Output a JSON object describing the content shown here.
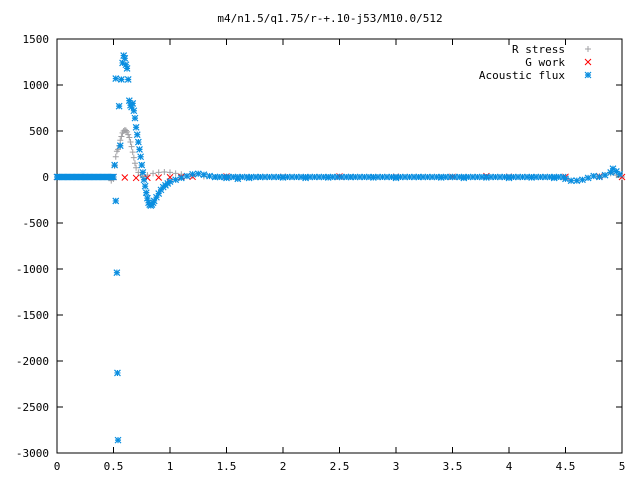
{
  "chart_data": {
    "type": "scatter",
    "title": "m4/n1.5/q1.75/r-+.10-j53/M10.0/512",
    "xlabel": "",
    "ylabel": "",
    "xlim": [
      0,
      5
    ],
    "ylim": [
      -3000,
      1500
    ],
    "xticks": [
      0,
      0.5,
      1,
      1.5,
      2,
      2.5,
      3,
      3.5,
      4,
      4.5,
      5
    ],
    "xtick_labels": [
      "0",
      "0.5",
      "1",
      "1.5",
      "2",
      "2.5",
      "3",
      "3.5",
      "4",
      "4.5",
      "5"
    ],
    "yticks": [
      -3000,
      -2500,
      -2000,
      -1500,
      -1000,
      -500,
      0,
      500,
      1000,
      1500
    ],
    "ytick_labels": [
      "-3000",
      "-2500",
      "-2000",
      "-1500",
      "-1000",
      "-500",
      "0",
      "500",
      "1000",
      "1500"
    ],
    "grid": false,
    "legend_position": "top-right",
    "series": [
      {
        "name": "R stress",
        "color": "#a0a0a4",
        "marker": "plus",
        "points": [
          [
            0.0,
            0
          ],
          [
            0.1,
            0
          ],
          [
            0.2,
            0
          ],
          [
            0.3,
            0
          ],
          [
            0.4,
            0
          ],
          [
            0.48,
            -40
          ],
          [
            0.5,
            -20
          ],
          [
            0.51,
            120
          ],
          [
            0.52,
            220
          ],
          [
            0.53,
            280
          ],
          [
            0.54,
            300
          ],
          [
            0.55,
            340
          ],
          [
            0.56,
            400
          ],
          [
            0.57,
            440
          ],
          [
            0.58,
            480
          ],
          [
            0.59,
            500
          ],
          [
            0.6,
            510
          ],
          [
            0.61,
            505
          ],
          [
            0.62,
            490
          ],
          [
            0.63,
            460
          ],
          [
            0.64,
            430
          ],
          [
            0.65,
            380
          ],
          [
            0.66,
            330
          ],
          [
            0.67,
            270
          ],
          [
            0.68,
            210
          ],
          [
            0.69,
            150
          ],
          [
            0.7,
            100
          ],
          [
            0.72,
            50
          ],
          [
            0.74,
            20
          ],
          [
            0.76,
            5
          ],
          [
            0.8,
            20
          ],
          [
            0.85,
            40
          ],
          [
            0.9,
            50
          ],
          [
            0.95,
            55
          ],
          [
            1.0,
            50
          ],
          [
            1.05,
            40
          ],
          [
            1.1,
            30
          ],
          [
            1.2,
            15
          ],
          [
            1.3,
            5
          ],
          [
            1.5,
            0
          ],
          [
            2.0,
            0
          ],
          [
            2.5,
            0
          ],
          [
            3.0,
            0
          ],
          [
            3.5,
            0
          ],
          [
            4.0,
            0
          ],
          [
            4.5,
            0
          ],
          [
            4.8,
            10
          ],
          [
            4.9,
            40
          ],
          [
            4.95,
            20
          ],
          [
            5.0,
            0
          ]
        ]
      },
      {
        "name": "G work",
        "color": "#ff0000",
        "marker": "cross",
        "points": [
          [
            0.0,
            0
          ],
          [
            0.5,
            0
          ],
          [
            0.6,
            -5
          ],
          [
            0.7,
            -10
          ],
          [
            0.8,
            -8
          ],
          [
            0.9,
            -5
          ],
          [
            1.0,
            -3
          ],
          [
            1.1,
            0
          ],
          [
            1.2,
            2
          ],
          [
            1.5,
            5
          ],
          [
            2.0,
            2
          ],
          [
            2.5,
            5
          ],
          [
            3.0,
            3
          ],
          [
            3.5,
            2
          ],
          [
            3.8,
            10
          ],
          [
            4.0,
            3
          ],
          [
            4.5,
            2
          ],
          [
            4.8,
            5
          ],
          [
            5.0,
            0
          ]
        ]
      },
      {
        "name": "Acoustic flux",
        "color": "#0a8ee0",
        "marker": "star",
        "points": [
          [
            0.51,
            130
          ],
          [
            0.52,
            -260
          ],
          [
            0.53,
            -1040
          ],
          [
            0.535,
            -2130
          ],
          [
            0.54,
            -2860
          ],
          [
            0.52,
            1070
          ],
          [
            0.55,
            770
          ],
          [
            0.56,
            340
          ],
          [
            0.57,
            1060
          ],
          [
            0.58,
            1240
          ],
          [
            0.59,
            1320
          ],
          [
            0.6,
            1290
          ],
          [
            0.61,
            1220
          ],
          [
            0.62,
            1180
          ],
          [
            0.63,
            1060
          ],
          [
            0.64,
            830
          ],
          [
            0.65,
            780
          ],
          [
            0.66,
            760
          ],
          [
            0.67,
            800
          ],
          [
            0.68,
            720
          ],
          [
            0.69,
            640
          ],
          [
            0.7,
            540
          ],
          [
            0.71,
            460
          ],
          [
            0.72,
            380
          ],
          [
            0.73,
            300
          ],
          [
            0.74,
            220
          ],
          [
            0.75,
            130
          ],
          [
            0.76,
            50
          ],
          [
            0.77,
            -30
          ],
          [
            0.78,
            -100
          ],
          [
            0.79,
            -170
          ],
          [
            0.8,
            -230
          ],
          [
            0.81,
            -280
          ],
          [
            0.82,
            -300
          ],
          [
            0.83,
            -310
          ],
          [
            0.84,
            -300
          ],
          [
            0.85,
            -280
          ],
          [
            0.86,
            -260
          ],
          [
            0.88,
            -220
          ],
          [
            0.9,
            -180
          ],
          [
            0.92,
            -140
          ],
          [
            0.94,
            -110
          ],
          [
            0.96,
            -90
          ],
          [
            0.98,
            -70
          ],
          [
            1.0,
            -50
          ],
          [
            1.05,
            -30
          ],
          [
            1.1,
            -10
          ],
          [
            1.15,
            10
          ],
          [
            1.2,
            30
          ],
          [
            1.25,
            35
          ],
          [
            1.3,
            25
          ],
          [
            1.35,
            10
          ],
          [
            1.4,
            0
          ],
          [
            1.5,
            -10
          ],
          [
            1.6,
            -20
          ],
          [
            1.7,
            -10
          ],
          [
            1.8,
            0
          ],
          [
            2.0,
            -5
          ],
          [
            2.2,
            -10
          ],
          [
            2.4,
            -5
          ],
          [
            2.6,
            0
          ],
          [
            2.8,
            -5
          ],
          [
            3.0,
            -10
          ],
          [
            3.2,
            0
          ],
          [
            3.4,
            -5
          ],
          [
            3.6,
            -10
          ],
          [
            3.8,
            -5
          ],
          [
            4.0,
            -10
          ],
          [
            4.2,
            -5
          ],
          [
            4.4,
            -10
          ],
          [
            4.5,
            -20
          ],
          [
            4.55,
            -40
          ],
          [
            4.6,
            -40
          ],
          [
            4.65,
            -30
          ],
          [
            4.7,
            -10
          ],
          [
            4.75,
            10
          ],
          [
            4.8,
            0
          ],
          [
            4.85,
            20
          ],
          [
            4.9,
            50
          ],
          [
            4.92,
            90
          ],
          [
            4.95,
            60
          ],
          [
            4.98,
            30
          ]
        ],
        "dense_baseline": {
          "x_start": 0.0,
          "x_end": 0.5,
          "y": 0
        }
      }
    ]
  }
}
